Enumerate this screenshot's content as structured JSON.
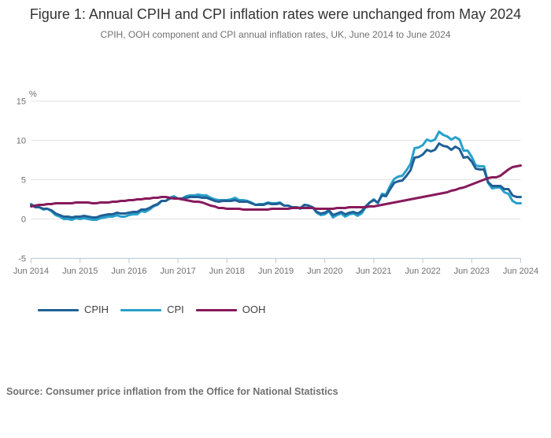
{
  "figure": {
    "title": "Figure 1: Annual CPIH and CPI inflation rates were unchanged from May 2024",
    "subtitle": "CPIH, OOH component and CPI annual inflation rates, UK, June 2014 to June 2024"
  },
  "legend": {
    "items": [
      {
        "label": "CPIH",
        "color": "#206095"
      },
      {
        "label": "CPI",
        "color": "#27a0cc"
      },
      {
        "label": "OOH",
        "color": "#871a5b"
      }
    ]
  },
  "source": {
    "text": "Source: Consumer price inflation from the Office for National Statistics"
  },
  "chart_data": {
    "type": "line",
    "title": "Figure 1: Annual CPIH and CPI inflation rates were unchanged from May 2024",
    "subtitle": "CPIH, OOH component and CPI annual inflation rates, UK, June 2014 to June 2024",
    "unit_label": "%",
    "x_frequency": "monthly",
    "x_start": "Jun 2014",
    "x_end": "Jun 2024",
    "x_tick_labels": [
      "Jun 2014",
      "Jun 2015",
      "Jun 2016",
      "Jun 2017",
      "Jun 2018",
      "Jun 2019",
      "Jun 2020",
      "Jun 2021",
      "Jun 2022",
      "Jun 2023",
      "Jun 2024"
    ],
    "ylim": [
      -5,
      15
    ],
    "y_ticks": [
      -5,
      0,
      5,
      10,
      15
    ],
    "grid": "horizontal",
    "legend_position": "bottom-left",
    "draw_order": [
      "CPI",
      "CPIH",
      "OOH"
    ],
    "series": [
      {
        "name": "CPIH",
        "color": "#206095",
        "values": [
          1.8,
          1.5,
          1.5,
          1.3,
          1.3,
          1.1,
          0.7,
          0.5,
          0.3,
          0.3,
          0.2,
          0.3,
          0.3,
          0.4,
          0.3,
          0.2,
          0.2,
          0.4,
          0.5,
          0.6,
          0.6,
          0.8,
          0.7,
          0.7,
          0.8,
          0.9,
          0.9,
          1.2,
          1.2,
          1.4,
          1.7,
          1.9,
          2.3,
          2.3,
          2.6,
          2.7,
          2.6,
          2.6,
          2.7,
          2.8,
          2.8,
          2.8,
          2.7,
          2.7,
          2.5,
          2.3,
          2.2,
          2.3,
          2.3,
          2.3,
          2.4,
          2.2,
          2.2,
          2.2,
          2.0,
          1.8,
          1.8,
          1.8,
          2.0,
          1.9,
          1.9,
          2.0,
          1.7,
          1.7,
          1.5,
          1.5,
          1.4,
          1.8,
          1.7,
          1.5,
          0.9,
          0.7,
          0.8,
          1.1,
          0.5,
          0.7,
          0.9,
          0.6,
          0.8,
          0.9,
          0.7,
          1.0,
          1.6,
          2.1,
          2.4,
          2.1,
          3.0,
          2.9,
          3.8,
          4.6,
          4.8,
          4.9,
          5.5,
          6.2,
          7.8,
          7.9,
          8.2,
          8.8,
          8.6,
          8.8,
          9.6,
          9.3,
          9.2,
          8.8,
          9.2,
          8.9,
          7.8,
          7.9,
          7.3,
          6.4,
          6.3,
          6.3,
          4.7,
          4.2,
          4.2,
          4.2,
          3.8,
          3.8,
          3.0,
          2.8,
          2.8
        ]
      },
      {
        "name": "CPI",
        "color": "#27a0cc",
        "values": [
          1.9,
          1.6,
          1.5,
          1.2,
          1.3,
          1.0,
          0.5,
          0.3,
          0.0,
          0.0,
          -0.1,
          0.1,
          0.0,
          0.1,
          0.0,
          -0.1,
          -0.1,
          0.1,
          0.2,
          0.3,
          0.3,
          0.5,
          0.3,
          0.3,
          0.5,
          0.6,
          0.6,
          1.0,
          0.9,
          1.2,
          1.6,
          1.8,
          2.3,
          2.3,
          2.7,
          2.9,
          2.6,
          2.6,
          2.9,
          3.0,
          3.0,
          3.1,
          3.0,
          3.0,
          2.7,
          2.5,
          2.4,
          2.4,
          2.4,
          2.5,
          2.7,
          2.4,
          2.4,
          2.3,
          2.1,
          1.8,
          1.9,
          1.9,
          2.1,
          2.0,
          2.0,
          2.1,
          1.7,
          1.7,
          1.5,
          1.5,
          1.3,
          1.8,
          1.7,
          1.5,
          0.8,
          0.5,
          0.6,
          1.0,
          0.2,
          0.5,
          0.7,
          0.3,
          0.6,
          0.7,
          0.4,
          0.7,
          1.5,
          2.1,
          2.5,
          2.0,
          3.2,
          3.1,
          4.2,
          5.1,
          5.4,
          5.5,
          6.2,
          7.0,
          9.0,
          9.1,
          9.4,
          10.1,
          9.9,
          10.1,
          11.1,
          10.7,
          10.5,
          10.1,
          10.4,
          10.1,
          8.7,
          8.7,
          7.9,
          6.8,
          6.7,
          6.7,
          4.6,
          3.9,
          4.0,
          4.0,
          3.4,
          3.2,
          2.3,
          2.0,
          2.0
        ]
      },
      {
        "name": "OOH",
        "color": "#871a5b",
        "values": [
          1.6,
          1.7,
          1.8,
          1.8,
          1.9,
          1.9,
          2.0,
          2.0,
          2.0,
          2.0,
          2.0,
          2.1,
          2.1,
          2.1,
          2.1,
          2.0,
          2.0,
          2.1,
          2.1,
          2.1,
          2.2,
          2.2,
          2.3,
          2.3,
          2.4,
          2.4,
          2.5,
          2.5,
          2.6,
          2.6,
          2.7,
          2.7,
          2.8,
          2.8,
          2.7,
          2.6,
          2.6,
          2.5,
          2.4,
          2.3,
          2.2,
          2.2,
          2.1,
          1.9,
          1.7,
          1.6,
          1.4,
          1.4,
          1.3,
          1.3,
          1.3,
          1.3,
          1.2,
          1.2,
          1.2,
          1.2,
          1.2,
          1.2,
          1.2,
          1.3,
          1.3,
          1.3,
          1.3,
          1.3,
          1.4,
          1.4,
          1.4,
          1.4,
          1.4,
          1.4,
          1.3,
          1.3,
          1.3,
          1.3,
          1.3,
          1.4,
          1.4,
          1.4,
          1.5,
          1.5,
          1.5,
          1.5,
          1.5,
          1.6,
          1.6,
          1.7,
          1.8,
          1.9,
          2.0,
          2.1,
          2.2,
          2.3,
          2.4,
          2.5,
          2.6,
          2.7,
          2.8,
          2.9,
          3.0,
          3.1,
          3.2,
          3.3,
          3.4,
          3.6,
          3.7,
          3.9,
          4.0,
          4.2,
          4.4,
          4.6,
          4.8,
          5.0,
          5.2,
          5.3,
          5.3,
          5.5,
          5.9,
          6.3,
          6.6,
          6.7,
          6.8
        ]
      }
    ]
  }
}
